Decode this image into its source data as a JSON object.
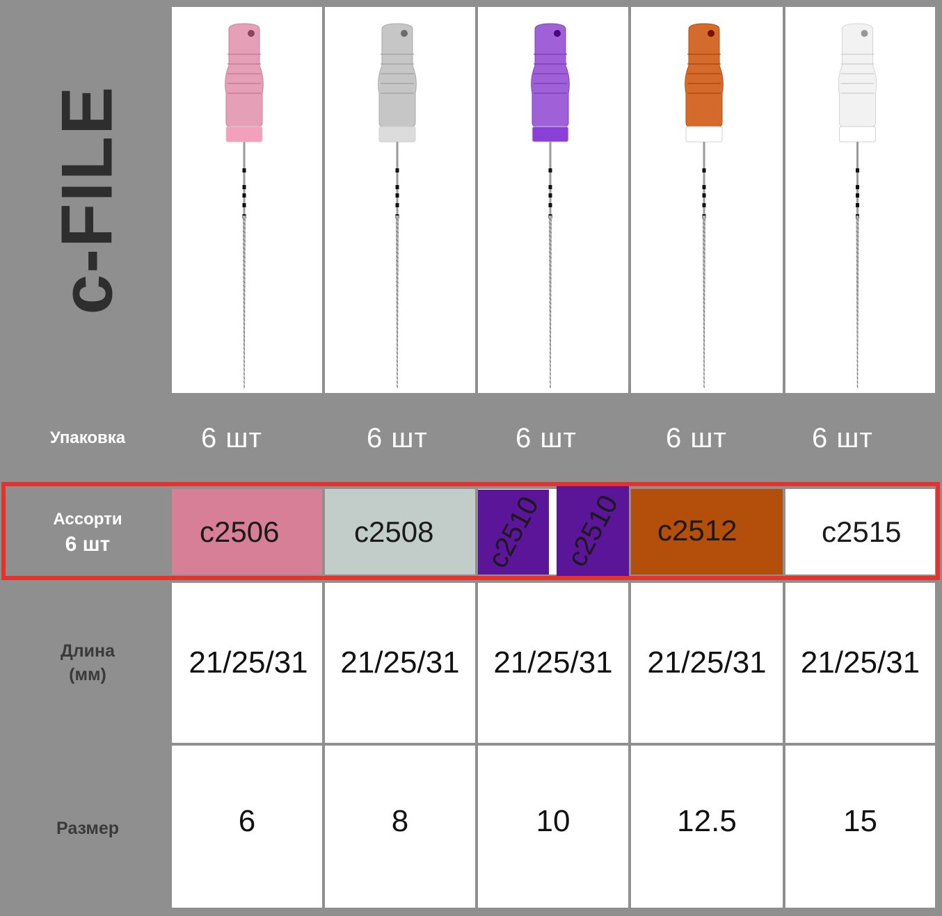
{
  "title": "c-FILE",
  "labels": {
    "packaging": "Упаковка",
    "assorted_line1": "Ассорти",
    "assorted_line2": "6 шт",
    "length_line1": "Длина",
    "length_line2": "(мм)",
    "size": "Размер"
  },
  "files": [
    {
      "handle_color": "#e59fb6",
      "collar_color": "#f3a0bd",
      "packaging": "6 шт",
      "code": "c2506",
      "code_bg": "#d87f98",
      "length": "21/25/31",
      "size": "6"
    },
    {
      "handle_color": "#c6c6c6",
      "collar_color": "#dcdcdc",
      "packaging": "6 шт",
      "code": "c2508",
      "code_bg": "#c2ccc8",
      "length": "21/25/31",
      "size": "8"
    },
    {
      "handle_color": "#a060d8",
      "collar_color": "#8a3fd6",
      "packaging": "6 шт",
      "code": "c2510",
      "code_bg": "#5b1599",
      "length": "21/25/31",
      "size": "10"
    },
    {
      "handle_color": "#d46a2c",
      "collar_color": "#ffffff",
      "packaging": "6 шт",
      "code": "c2512",
      "code_bg": "#b44e0b",
      "length": "21/25/31",
      "size": "12.5"
    },
    {
      "handle_color": "#f2f2f2",
      "collar_color": "#ffffff",
      "packaging": "6 шт",
      "code": "c2515",
      "code_bg": "#ffffff",
      "length": "21/25/31",
      "size": "15"
    }
  ],
  "highlight_color": "#e8312a"
}
